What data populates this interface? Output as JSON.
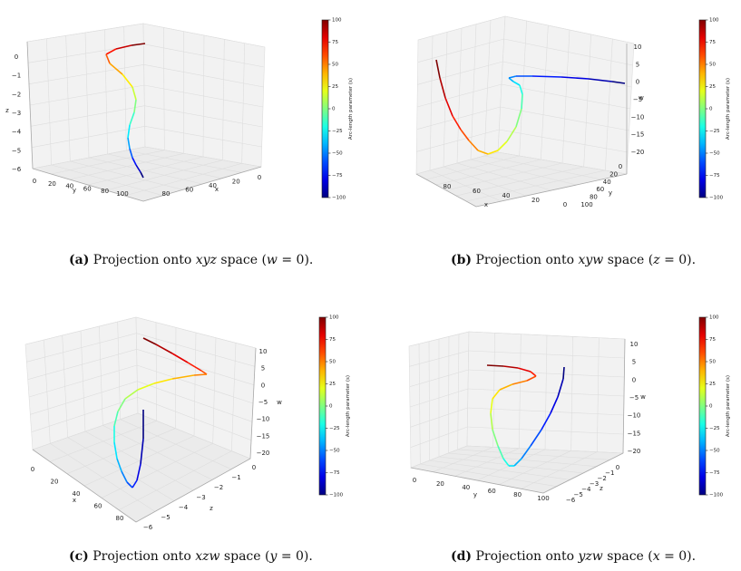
{
  "colors": {
    "line_low": "#00008b",
    "line_high": "#a00000",
    "pane": "#f2f2f2",
    "grid": "#dddddd",
    "edge": "#aaaaaa"
  },
  "colorbar": {
    "label": "Arc-length parameter (s)",
    "ticks": [
      "100",
      "75",
      "50",
      "25",
      "0",
      "−25",
      "−50",
      "−75",
      "−100"
    ],
    "min": -100,
    "max": 100
  },
  "chart_data": [
    {
      "type": "line3d",
      "caption": {
        "tag": "(a)",
        "pre": "Projection onto",
        "space": "xyz",
        "mid": "space (",
        "var": "w",
        "post": "= 0)."
      },
      "axes": {
        "x": {
          "label": "x",
          "ticks": [
            "0",
            "20",
            "40",
            "60",
            "80"
          ]
        },
        "y": {
          "label": "y",
          "ticks": [
            "0",
            "20",
            "40",
            "60",
            "80",
            "100"
          ]
        },
        "z": {
          "label": "z",
          "ticks": [
            "0",
            "−1",
            "−2",
            "−3",
            "−4",
            "−5",
            "−6"
          ]
        }
      }
    },
    {
      "type": "line3d",
      "caption": {
        "tag": "(b)",
        "pre": "Projection onto",
        "space": "xyw",
        "mid": "space (",
        "var": "z",
        "post": "= 0)."
      },
      "axes": {
        "x": {
          "label": "x",
          "ticks": [
            "80",
            "60",
            "40",
            "20",
            "0"
          ]
        },
        "y": {
          "label": "y",
          "ticks": [
            "0",
            "20",
            "40",
            "60",
            "80",
            "100"
          ]
        },
        "z": {
          "label": "w",
          "ticks": [
            "10",
            "5",
            "0",
            "−5",
            "−10",
            "−15",
            "−20"
          ]
        }
      }
    },
    {
      "type": "line3d",
      "caption": {
        "tag": "(c)",
        "pre": "Projection onto",
        "space": "xzw",
        "mid": "space (",
        "var": "y",
        "post": "= 0)."
      },
      "axes": {
        "x": {
          "label": "x",
          "ticks": [
            "0",
            "20",
            "40",
            "60",
            "80"
          ]
        },
        "y": {
          "label": "z",
          "ticks": [
            "0",
            "−1",
            "−2",
            "−3",
            "−4",
            "−5",
            "−6"
          ]
        },
        "z": {
          "label": "w",
          "ticks": [
            "10",
            "5",
            "0",
            "−5",
            "−10",
            "−15",
            "−20"
          ]
        }
      }
    },
    {
      "type": "line3d",
      "caption": {
        "tag": "(d)",
        "pre": "Projection onto",
        "space": "yzw",
        "mid": "space (",
        "var": "x",
        "post": "= 0)."
      },
      "axes": {
        "x": {
          "label": "y",
          "ticks": [
            "0",
            "20",
            "40",
            "60",
            "80",
            "100"
          ]
        },
        "y": {
          "label": "z",
          "ticks": [
            "0",
            "−1",
            "−2",
            "−3",
            "−4",
            "−5",
            "−6"
          ]
        },
        "z": {
          "label": "w",
          "ticks": [
            "10",
            "5",
            "0",
            "−5",
            "−10",
            "−15",
            "−20"
          ]
        }
      }
    }
  ]
}
